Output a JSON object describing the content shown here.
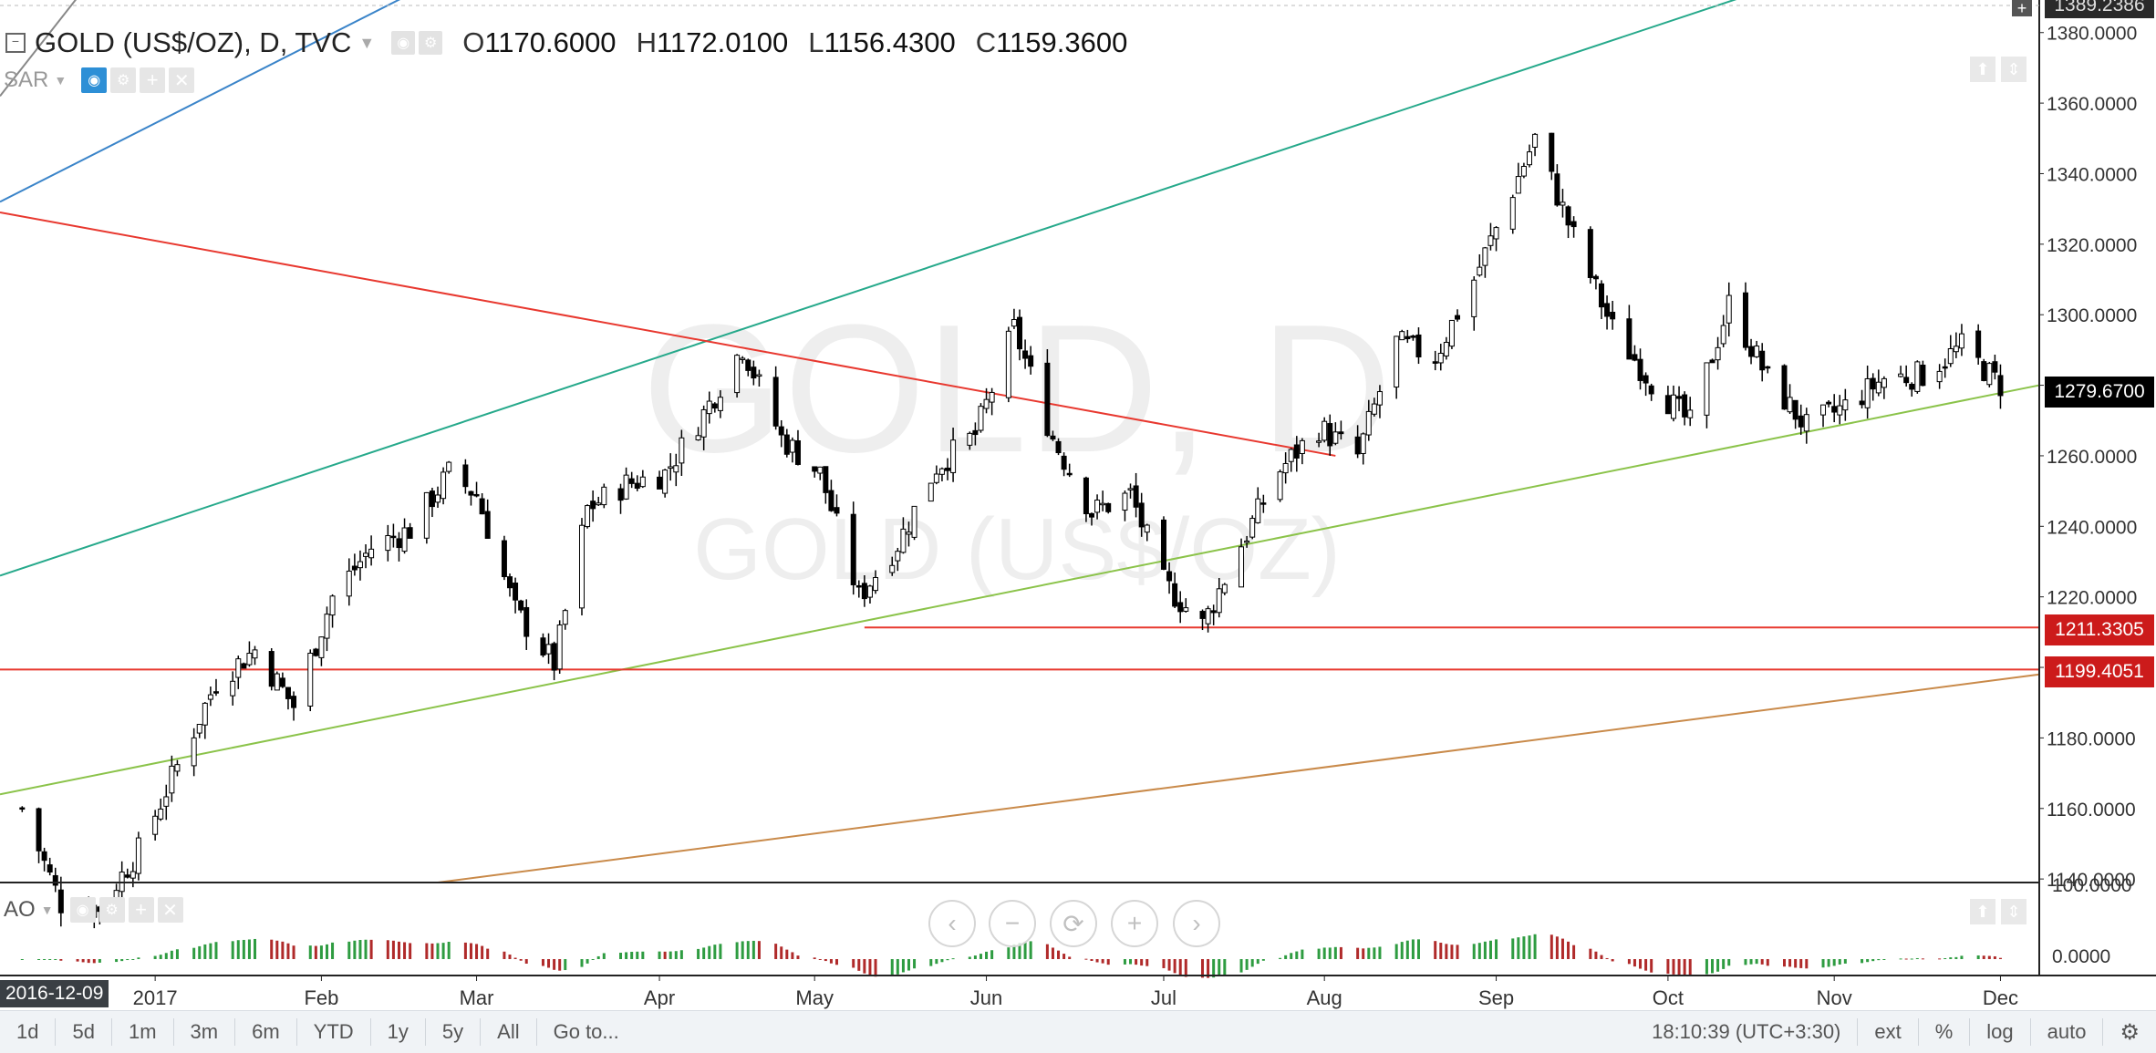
{
  "legend": {
    "symbol": "GOLD (US$/OZ), D, TVC",
    "open_label": "O",
    "open": "1170.6000",
    "high_label": "H",
    "high": "1172.0100",
    "low_label": "L",
    "low": "1156.4300",
    "close_label": "C",
    "close": "1159.3600"
  },
  "indicator_sar": {
    "label": "SAR"
  },
  "indicator_ao": {
    "label": "AO"
  },
  "watermark": {
    "line1": "GOLD, D",
    "line2": "GOLD (US$/OZ)"
  },
  "price_tags": {
    "top": "1389.2386",
    "last": "1279.6700",
    "line1": "1211.3305",
    "line2": "1199.4051"
  },
  "cursor_date": "2016-12-09",
  "bottom_bar": {
    "timeframes": [
      "1d",
      "5d",
      "1m",
      "3m",
      "6m",
      "YTD",
      "1y",
      "5y",
      "All"
    ],
    "goto": "Go to...",
    "clock": "18:10:39 (UTC+3:30)",
    "ext": "ext",
    "percent": "%",
    "log": "log",
    "auto": "auto"
  },
  "colors": {
    "up": "#ffffff",
    "down": "#000000",
    "wick": "#000000",
    "red_line": "#e8382f",
    "blue_line": "#3a84c9",
    "teal_line": "#26a98b",
    "green_line": "#8bc34a",
    "orange_line": "#c98a4a",
    "ao_up": "#2e9c41",
    "ao_down": "#b02a2a"
  },
  "chart_data": {
    "type": "candlestick",
    "title": "GOLD (US$/OZ), D, TVC",
    "ylim": [
      1139.0,
      1389.2386
    ],
    "y_ticks": [
      1140,
      1160,
      1180,
      1200,
      1220,
      1240,
      1260,
      1280,
      1300,
      1320,
      1340,
      1360,
      1380
    ],
    "y_tick_labels": [
      "1140.0000",
      "1160.0000",
      "1180.0000",
      "1200.0000",
      "1220.0000",
      "1240.0000",
      "1260.0000",
      "1280.0000",
      "1300.0000",
      "1320.0000",
      "1340.0000",
      "1360.0000",
      "1380.0000"
    ],
    "x_labels": [
      "2017",
      "Feb",
      "Mar",
      "Apr",
      "May",
      "Jun",
      "Jul",
      "Aug",
      "Sep",
      "Oct",
      "Nov",
      "Dec"
    ],
    "x_label_dates": [
      "2017-01-02",
      "2017-02-01",
      "2017-03-01",
      "2017-04-03",
      "2017-05-01",
      "2017-06-01",
      "2017-07-03",
      "2017-08-01",
      "2017-09-01",
      "2017-10-02",
      "2017-11-01",
      "2017-12-01"
    ],
    "series": [
      {
        "name": "GOLD (US$/OZ)",
        "close_path": [
          [
            "2016-12-09",
            1160
          ],
          [
            "2016-12-16",
            1133
          ],
          [
            "2016-12-23",
            1132
          ],
          [
            "2016-12-30",
            1148
          ],
          [
            "2017-01-06",
            1172
          ],
          [
            "2017-01-13",
            1196
          ],
          [
            "2017-01-20",
            1205
          ],
          [
            "2017-01-27",
            1189
          ],
          [
            "2017-02-03",
            1220
          ],
          [
            "2017-02-10",
            1234
          ],
          [
            "2017-02-17",
            1239
          ],
          [
            "2017-02-24",
            1255
          ],
          [
            "2017-03-01",
            1249
          ],
          [
            "2017-03-08",
            1216
          ],
          [
            "2017-03-15",
            1201
          ],
          [
            "2017-03-21",
            1245
          ],
          [
            "2017-03-28",
            1252
          ],
          [
            "2017-04-04",
            1255
          ],
          [
            "2017-04-11",
            1272
          ],
          [
            "2017-04-18",
            1291
          ],
          [
            "2017-04-25",
            1265
          ],
          [
            "2017-05-02",
            1255
          ],
          [
            "2017-05-09",
            1220
          ],
          [
            "2017-05-16",
            1235
          ],
          [
            "2017-05-23",
            1257
          ],
          [
            "2017-05-30",
            1266
          ],
          [
            "2017-06-06",
            1296
          ],
          [
            "2017-06-13",
            1265
          ],
          [
            "2017-06-20",
            1244
          ],
          [
            "2017-06-27",
            1249
          ],
          [
            "2017-07-03",
            1224
          ],
          [
            "2017-07-10",
            1212
          ],
          [
            "2017-07-17",
            1235
          ],
          [
            "2017-07-24",
            1256
          ],
          [
            "2017-07-31",
            1268
          ],
          [
            "2017-08-07",
            1260
          ],
          [
            "2017-08-14",
            1292
          ],
          [
            "2017-08-21",
            1288
          ],
          [
            "2017-08-28",
            1310
          ],
          [
            "2017-09-08",
            1350
          ],
          [
            "2017-09-15",
            1322
          ],
          [
            "2017-09-22",
            1296
          ],
          [
            "2017-09-29",
            1281
          ],
          [
            "2017-10-06",
            1269
          ],
          [
            "2017-10-13",
            1303
          ],
          [
            "2017-10-20",
            1282
          ],
          [
            "2017-10-27",
            1268
          ],
          [
            "2017-11-03",
            1274
          ],
          [
            "2017-11-10",
            1282
          ],
          [
            "2017-11-17",
            1283
          ],
          [
            "2017-11-24",
            1291
          ],
          [
            "2017-12-01",
            1280
          ]
        ]
      }
    ],
    "horizontal_lines": [
      1211.3305,
      1199.4051
    ],
    "last_price": 1279.67,
    "indicators": [
      {
        "name": "AO",
        "y_tick_labels": [
          "100.0000",
          "0.0000"
        ]
      },
      {
        "name": "SAR"
      }
    ],
    "grid": false,
    "legend": "top-left"
  }
}
